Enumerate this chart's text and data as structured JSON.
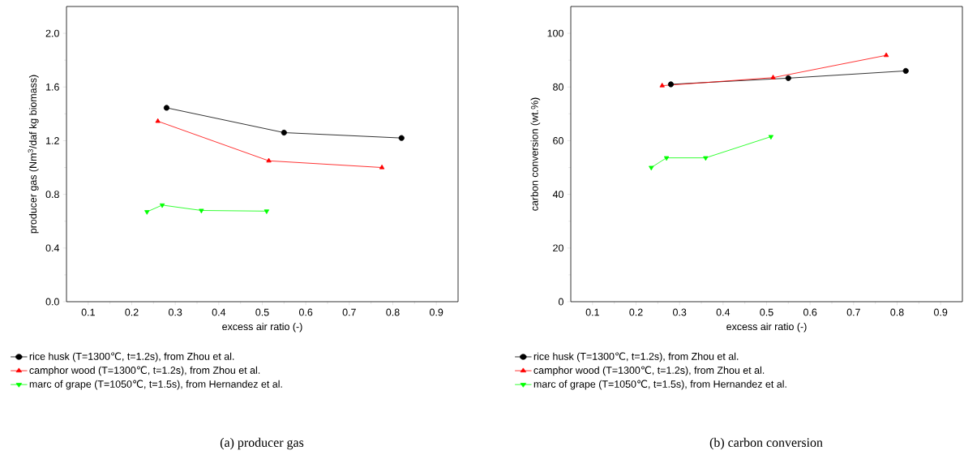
{
  "chart_data": [
    {
      "type": "line",
      "title": "(a) producer gas",
      "xlabel": "excess air ratio (-)",
      "ylabel": "producer gas (Nm$^{3}$/daf kg biomass)",
      "xlim": [
        0.05,
        0.95
      ],
      "xticks": [
        0.1,
        0.2,
        0.3,
        0.4,
        0.5,
        0.6,
        0.7,
        0.8,
        0.9
      ],
      "ylim": [
        0,
        2.2
      ],
      "yticks": [
        {
          "value": 0,
          "label": "0.0"
        },
        0.4,
        0.8,
        1.2,
        1.6,
        {
          "value": 2,
          "label": "2.0"
        }
      ],
      "grid": false,
      "legend": "bottom",
      "line_style": "solid",
      "series": [
        {
          "name": "rice husk (T=1300℃, t=1.2s), from Zhou et al.",
          "color": "#000000",
          "marker": "circle",
          "x": [
            0.28,
            0.55,
            0.82
          ],
          "values": [
            1.445,
            1.26,
            1.22
          ]
        },
        {
          "name": "camphor wood (T=1300℃, t=1.2s), from Zhou et al.",
          "color": "#ff0000",
          "marker": "triangle",
          "x": [
            0.26,
            0.515,
            0.775
          ],
          "values": [
            1.345,
            1.05,
            1.0
          ]
        },
        {
          "name": "marc of grape (T=1050℃, t=1.5s), from Hernandez et al.",
          "color": "#00ff00",
          "marker": "triangle_down",
          "x": [
            0.235,
            0.27,
            0.36,
            0.51
          ],
          "values": [
            0.67,
            0.72,
            0.68,
            0.675
          ]
        }
      ]
    },
    {
      "type": "line",
      "title": "(b) carbon conversion",
      "xlabel": "excess air ratio (-)",
      "ylabel": "carbon conversion (wt.%)",
      "xlim": [
        0.05,
        0.95
      ],
      "xticks": [
        0.1,
        0.2,
        0.3,
        0.4,
        0.5,
        0.6,
        0.7,
        0.8,
        0.9
      ],
      "ylim": [
        0,
        110
      ],
      "yticks": [
        0,
        20,
        40,
        60,
        80,
        100
      ],
      "grid": false,
      "legend": "bottom",
      "line_style": "solid",
      "series": [
        {
          "name": "rice husk (T=1300℃, t=1.2s), from Zhou et al.",
          "color": "#000000",
          "marker": "circle",
          "x": [
            0.28,
            0.55,
            0.82
          ],
          "values": [
            81,
            83.3,
            86
          ]
        },
        {
          "name": "camphor wood (T=1300℃, t=1.2s), from Zhou et al.",
          "color": "#ff0000",
          "marker": "triangle",
          "x": [
            0.26,
            0.515,
            0.775
          ],
          "values": [
            80.5,
            83.5,
            91.8
          ]
        },
        {
          "name": "marc of grape (T=1050℃, t=1.5s), from Hernandez et al.",
          "color": "#00ff00",
          "marker": "triangle_down",
          "x": [
            0.235,
            0.27,
            0.36,
            0.51
          ],
          "values": [
            50,
            53.6,
            53.6,
            61.5
          ]
        }
      ]
    }
  ]
}
